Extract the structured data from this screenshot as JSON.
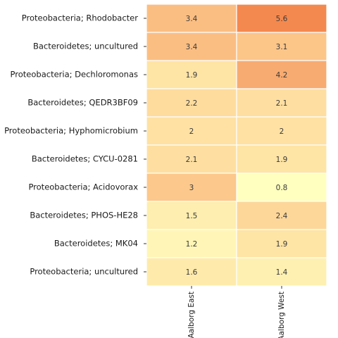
{
  "chart_data": {
    "type": "heatmap",
    "title": "",
    "xlabel": "",
    "ylabel": "",
    "columns": [
      "Aalborg East",
      "Aalborg West"
    ],
    "rows": [
      "Proteobacteria; Rhodobacter",
      "Bacteroidetes; uncultured",
      "Proteobacteria; Dechloromonas",
      "Bacteroidetes; QEDR3BF09",
      "Proteobacteria; Hyphomicrobium",
      "Bacteroidetes; CYCU-0281",
      "Proteobacteria; Acidovorax",
      "Bacteroidetes; PHOS-HE28",
      "Bacteroidetes; MK04",
      "Proteobacteria; uncultured"
    ],
    "values": [
      [
        3.4,
        5.6
      ],
      [
        3.4,
        3.1
      ],
      [
        1.9,
        4.2
      ],
      [
        2.2,
        2.1
      ],
      [
        2,
        2
      ],
      [
        2.1,
        1.9
      ],
      [
        3,
        0.8
      ],
      [
        1.5,
        2.4
      ],
      [
        1.2,
        1.9
      ],
      [
        1.6,
        1.4
      ]
    ],
    "color_low": "#ffffbf",
    "color_high": "#f4894f",
    "legend": "none",
    "grid": false
  }
}
